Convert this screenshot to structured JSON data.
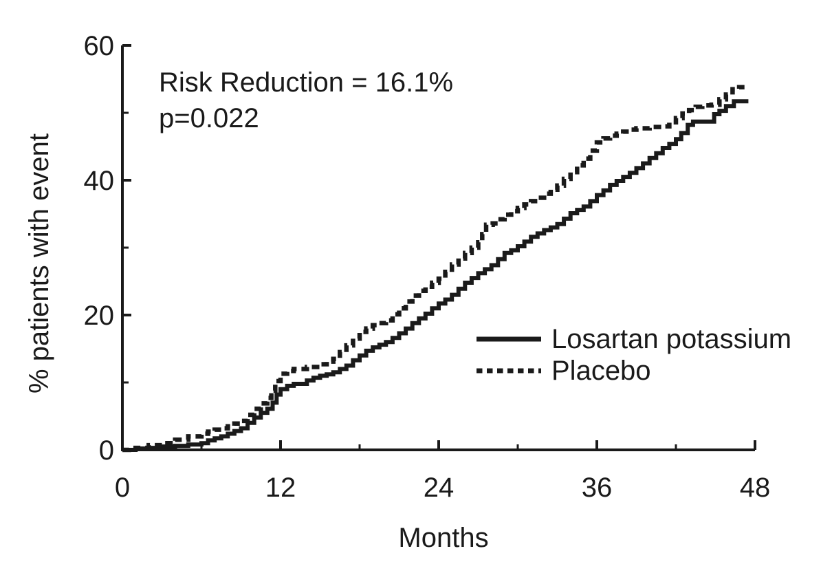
{
  "figure": {
    "background": "#ffffff",
    "ink_color": "#1a1a1a"
  },
  "chart_data": {
    "type": "line",
    "subtype": "kaplan-meier-cumulative-event-step",
    "title": "",
    "xlabel": "Months",
    "ylabel": "% patients with event",
    "xlim": [
      0,
      48
    ],
    "ylim": [
      0,
      60
    ],
    "x_major_ticks": [
      0,
      12,
      24,
      36,
      48
    ],
    "x_minor_ticks": [
      6,
      18,
      30,
      42
    ],
    "y_major_ticks": [
      0,
      20,
      40,
      60
    ],
    "y_minor_ticks": [
      10,
      30,
      50
    ],
    "grid": false,
    "legend_position": "center-right",
    "annotations": [
      "Risk Reduction = 16.1%",
      "p=0.022"
    ],
    "series": [
      {
        "name": "Losartan potassium",
        "line_style": "solid",
        "color": "#1a1a1a",
        "points": [
          [
            0,
            0
          ],
          [
            1,
            0.2
          ],
          [
            2,
            0.3
          ],
          [
            3,
            0.5
          ],
          [
            4,
            0.6
          ],
          [
            5,
            0.8
          ],
          [
            6,
            1.0
          ],
          [
            6.5,
            1.4
          ],
          [
            7,
            1.7
          ],
          [
            7.5,
            2.0
          ],
          [
            8,
            2.4
          ],
          [
            8.5,
            2.8
          ],
          [
            9,
            3.2
          ],
          [
            9.5,
            4.0
          ],
          [
            10,
            4.8
          ],
          [
            10.5,
            5.5
          ],
          [
            11,
            6.1
          ],
          [
            11.4,
            7.0
          ],
          [
            11.7,
            8.2
          ],
          [
            12,
            9.0
          ],
          [
            12.5,
            9.5
          ],
          [
            13,
            9.8
          ],
          [
            14,
            10.3
          ],
          [
            14.5,
            10.7
          ],
          [
            15,
            11.0
          ],
          [
            15.5,
            11.2
          ],
          [
            16,
            11.5
          ],
          [
            16.5,
            12.0
          ],
          [
            17,
            12.5
          ],
          [
            17.5,
            13.3
          ],
          [
            18,
            14.0
          ],
          [
            18.5,
            14.7
          ],
          [
            19,
            15.2
          ],
          [
            19.5,
            15.6
          ],
          [
            20,
            16.0
          ],
          [
            20.5,
            16.6
          ],
          [
            21,
            17.3
          ],
          [
            21.5,
            18.0
          ],
          [
            22,
            18.8
          ],
          [
            22.5,
            19.5
          ],
          [
            23,
            20.2
          ],
          [
            23.5,
            21.0
          ],
          [
            24,
            21.7
          ],
          [
            24.5,
            22.3
          ],
          [
            25,
            23.0
          ],
          [
            25.5,
            23.9
          ],
          [
            26,
            24.8
          ],
          [
            26.5,
            25.5
          ],
          [
            27,
            26.2
          ],
          [
            27.5,
            26.8
          ],
          [
            28,
            27.4
          ],
          [
            28.5,
            28.3
          ],
          [
            29,
            29.2
          ],
          [
            29.5,
            29.6
          ],
          [
            30,
            30.2
          ],
          [
            30.5,
            30.9
          ],
          [
            31,
            31.6
          ],
          [
            31.5,
            32.1
          ],
          [
            32,
            32.6
          ],
          [
            32.5,
            33.0
          ],
          [
            33,
            33.5
          ],
          [
            33.5,
            34.3
          ],
          [
            34,
            35.1
          ],
          [
            34.5,
            35.6
          ],
          [
            35,
            36.1
          ],
          [
            35.5,
            36.9
          ],
          [
            36,
            37.8
          ],
          [
            36.5,
            38.5
          ],
          [
            37,
            39.3
          ],
          [
            37.5,
            39.9
          ],
          [
            38,
            40.5
          ],
          [
            38.5,
            41.1
          ],
          [
            39,
            41.8
          ],
          [
            39.5,
            42.5
          ],
          [
            40,
            43.3
          ],
          [
            40.5,
            44.0
          ],
          [
            41,
            44.8
          ],
          [
            41.5,
            45.4
          ],
          [
            42,
            46.1
          ],
          [
            42.4,
            47.0
          ],
          [
            42.9,
            48.2
          ],
          [
            43.3,
            48.7
          ],
          [
            44.6,
            48.7
          ],
          [
            44.9,
            49.8
          ],
          [
            45.3,
            50.3
          ],
          [
            45.8,
            51.0
          ],
          [
            46.4,
            51.7
          ],
          [
            47.5,
            51.7
          ]
        ]
      },
      {
        "name": "Placebo",
        "line_style": "dashed",
        "color": "#1a1a1a",
        "points": [
          [
            0,
            0
          ],
          [
            0.5,
            0.2
          ],
          [
            1,
            0.3
          ],
          [
            2,
            0.7
          ],
          [
            3,
            1.0
          ],
          [
            4,
            1.5
          ],
          [
            5,
            2.0
          ],
          [
            6,
            2.4
          ],
          [
            6.5,
            2.7
          ],
          [
            7,
            3.0
          ],
          [
            7.5,
            3.2
          ],
          [
            8,
            3.5
          ],
          [
            8.5,
            3.9
          ],
          [
            9,
            4.3
          ],
          [
            9.5,
            5.2
          ],
          [
            10,
            6.1
          ],
          [
            10.5,
            6.9
          ],
          [
            11,
            7.7
          ],
          [
            11.3,
            8.8
          ],
          [
            11.6,
            10.2
          ],
          [
            12,
            11.3
          ],
          [
            12.5,
            11.7
          ],
          [
            13,
            12.0
          ],
          [
            14,
            12.3
          ],
          [
            15,
            12.7
          ],
          [
            15.5,
            13.1
          ],
          [
            16,
            13.5
          ],
          [
            16.5,
            14.5
          ],
          [
            17,
            15.5
          ],
          [
            17.5,
            16.5
          ],
          [
            18,
            17.5
          ],
          [
            18.5,
            18.0
          ],
          [
            19,
            18.5
          ],
          [
            19.5,
            18.8
          ],
          [
            20,
            19.2
          ],
          [
            20.5,
            20.1
          ],
          [
            21,
            21.0
          ],
          [
            21.5,
            22.0
          ],
          [
            22,
            22.9
          ],
          [
            22.5,
            23.6
          ],
          [
            23,
            24.2
          ],
          [
            23.5,
            24.8
          ],
          [
            24,
            25.4
          ],
          [
            24.5,
            26.4
          ],
          [
            25,
            27.5
          ],
          [
            25.5,
            28.4
          ],
          [
            26,
            29.2
          ],
          [
            26.5,
            30.0
          ],
          [
            27,
            30.8
          ],
          [
            27.3,
            32.0
          ],
          [
            27.6,
            33.4
          ],
          [
            28.1,
            33.6
          ],
          [
            28.5,
            34.2
          ],
          [
            29,
            34.9
          ],
          [
            29.5,
            35.4
          ],
          [
            30,
            35.9
          ],
          [
            30.5,
            36.4
          ],
          [
            31,
            36.9
          ],
          [
            31.5,
            37.4
          ],
          [
            32,
            38.0
          ],
          [
            32.5,
            38.6
          ],
          [
            33,
            39.2
          ],
          [
            33.5,
            40.2
          ],
          [
            34,
            41.2
          ],
          [
            34.5,
            42.2
          ],
          [
            35,
            43.2
          ],
          [
            35.5,
            44.4
          ],
          [
            36,
            45.6
          ],
          [
            36.5,
            46.2
          ],
          [
            37,
            46.6
          ],
          [
            37.5,
            46.9
          ],
          [
            38,
            47.2
          ],
          [
            38.5,
            47.5
          ],
          [
            39,
            47.7
          ],
          [
            40,
            47.9
          ],
          [
            41,
            48.0
          ],
          [
            41.5,
            48.6
          ],
          [
            42,
            49.2
          ],
          [
            42.5,
            49.9
          ],
          [
            43,
            50.4
          ],
          [
            43.5,
            50.9
          ],
          [
            44,
            51.1
          ],
          [
            44.7,
            51.2
          ],
          [
            45.3,
            52.0
          ],
          [
            45.8,
            52.7
          ],
          [
            46.3,
            53.5
          ],
          [
            46.8,
            53.8
          ],
          [
            47.2,
            53.8
          ]
        ]
      }
    ]
  }
}
